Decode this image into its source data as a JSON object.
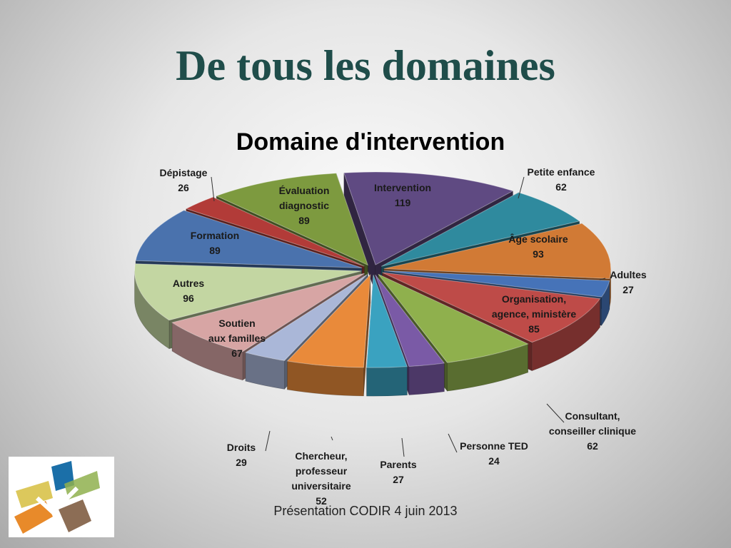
{
  "slide": {
    "title": "De tous les domaines",
    "footer": "Présentation CODIR 4 juin 2013"
  },
  "chart_data": {
    "type": "pie",
    "title": "Domaine d'intervention",
    "style": "3d-exploded",
    "slices": [
      {
        "label": "Intervention",
        "value": 119,
        "color": "#5f4a82"
      },
      {
        "label": "Petite enfance",
        "value": 62,
        "color": "#2f8a9e"
      },
      {
        "label": "Âge scolaire",
        "value": 93,
        "color": "#d17a35"
      },
      {
        "label": "Adultes",
        "value": 27,
        "color": "#4673b8"
      },
      {
        "label": "Organisation, agence, ministère",
        "value": 85,
        "color": "#be4b48"
      },
      {
        "label": "Consultant, conseiller clinique",
        "value": 62,
        "color": "#8fb04d"
      },
      {
        "label": "Personne TED",
        "value": 24,
        "color": "#7a5aa6"
      },
      {
        "label": "Parents",
        "value": 27,
        "color": "#3aa2c0"
      },
      {
        "label": "Chercheur, professeur universitaire",
        "value": 52,
        "color": "#e98a3a"
      },
      {
        "label": "Droits",
        "value": 29,
        "color": "#aab7d8"
      },
      {
        "label": "Soutien aux familles",
        "value": 67,
        "color": "#d7a5a4"
      },
      {
        "label": "Autres",
        "value": 96,
        "color": "#c3d6a2"
      },
      {
        "label": "Formation",
        "value": 89,
        "color": "#4a72ad"
      },
      {
        "label": "Dépistage",
        "value": 26,
        "color": "#b23b38"
      },
      {
        "label": "Évaluation diagnostic",
        "value": 89,
        "color": "#7d9a3f"
      }
    ],
    "data_labels": [
      {
        "lines": [
          "Intervention",
          "119"
        ]
      },
      {
        "lines": [
          "Petite enfance",
          "62"
        ]
      },
      {
        "lines": [
          "Âge scolaire",
          "93"
        ]
      },
      {
        "lines": [
          "Adultes",
          "27"
        ]
      },
      {
        "lines": [
          "Organisation,",
          "agence, ministère",
          "85"
        ]
      },
      {
        "lines": [
          "Consultant,",
          "conseiller clinique",
          "62"
        ]
      },
      {
        "lines": [
          "Personne TED",
          "24"
        ]
      },
      {
        "lines": [
          "Parents",
          "27"
        ]
      },
      {
        "lines": [
          "Chercheur,",
          "professeur",
          "universitaire",
          "52"
        ]
      },
      {
        "lines": [
          "Droits",
          "29"
        ]
      },
      {
        "lines": [
          "Soutien",
          "aux familles",
          "67"
        ]
      },
      {
        "lines": [
          "Autres",
          "96"
        ]
      },
      {
        "lines": [
          "Formation",
          "89"
        ]
      },
      {
        "lines": [
          "Dépistage",
          "26"
        ]
      },
      {
        "lines": [
          "Évaluation",
          "diagnostic",
          "89"
        ]
      }
    ]
  },
  "logo": {
    "colors": [
      "#1b6fa8",
      "#d8c24a",
      "#e88a2a",
      "#8c6d55",
      "#8fb04d"
    ]
  }
}
